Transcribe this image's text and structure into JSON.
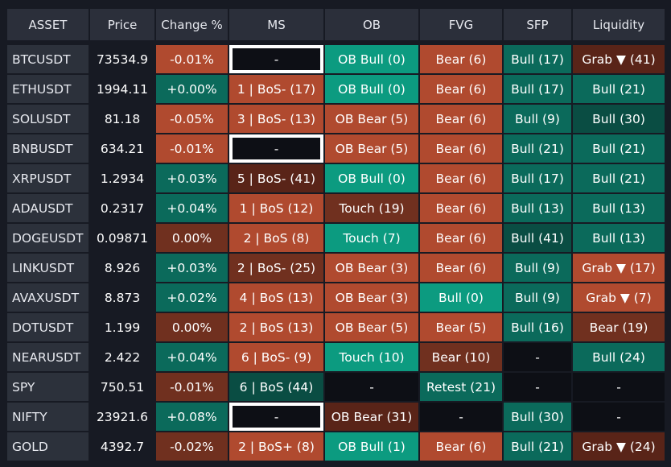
{
  "headers": [
    "ASSET",
    "Price",
    "Change %",
    "MS",
    "OB",
    "FVG",
    "SFP",
    "Liquidity"
  ],
  "colors": {
    "background": "#171a23",
    "header_bg": "#2b2f3a",
    "asset_bg": "#2c313b",
    "price_bg": "#171a23",
    "teal": "#0c9b80",
    "dark_teal": "#0b6a5b",
    "darkest_teal": "#0a4d43",
    "orange": "#b04a2f",
    "brown": "#70301f",
    "dark_brown": "#592418",
    "black": "#0d0f15"
  },
  "rows": [
    {
      "asset": "BTCUSDT",
      "price": "73534.9",
      "change": {
        "text": "-0.01%",
        "color": "orange"
      },
      "ms": {
        "text": "-",
        "color": "black",
        "highlight": true
      },
      "ob": {
        "text": "OB Bull (0)",
        "color": "teal"
      },
      "fvg": {
        "text": "Bear (6)",
        "color": "orange"
      },
      "sfp": {
        "text": "Bull (17)",
        "color": "dark_teal"
      },
      "liq": {
        "text": "Grab ▼ (41)",
        "color": "dark_brown"
      }
    },
    {
      "asset": "ETHUSDT",
      "price": "1994.11",
      "change": {
        "text": "+0.00%",
        "color": "dark_teal"
      },
      "ms": {
        "text": "1 | BoS- (17)",
        "color": "orange"
      },
      "ob": {
        "text": "OB Bull (0)",
        "color": "teal"
      },
      "fvg": {
        "text": "Bear (6)",
        "color": "orange"
      },
      "sfp": {
        "text": "Bull (17)",
        "color": "dark_teal"
      },
      "liq": {
        "text": "Bull (21)",
        "color": "dark_teal"
      }
    },
    {
      "asset": "SOLUSDT",
      "price": "81.18",
      "change": {
        "text": "-0.05%",
        "color": "orange"
      },
      "ms": {
        "text": "3 | BoS- (13)",
        "color": "orange"
      },
      "ob": {
        "text": "OB Bear (5)",
        "color": "orange"
      },
      "fvg": {
        "text": "Bear (6)",
        "color": "orange"
      },
      "sfp": {
        "text": "Bull (9)",
        "color": "dark_teal"
      },
      "liq": {
        "text": "Bull (30)",
        "color": "darkest_teal"
      }
    },
    {
      "asset": "BNBUSDT",
      "price": "634.21",
      "change": {
        "text": "-0.01%",
        "color": "orange"
      },
      "ms": {
        "text": "-",
        "color": "black",
        "highlight": true
      },
      "ob": {
        "text": "OB Bear (5)",
        "color": "orange"
      },
      "fvg": {
        "text": "Bear (6)",
        "color": "orange"
      },
      "sfp": {
        "text": "Bull (21)",
        "color": "dark_teal"
      },
      "liq": {
        "text": "Bull (21)",
        "color": "dark_teal"
      }
    },
    {
      "asset": "XRPUSDT",
      "price": "1.2934",
      "change": {
        "text": "+0.03%",
        "color": "dark_teal"
      },
      "ms": {
        "text": "5 | BoS- (41)",
        "color": "dark_brown"
      },
      "ob": {
        "text": "OB Bull (0)",
        "color": "teal"
      },
      "fvg": {
        "text": "Bear (6)",
        "color": "orange"
      },
      "sfp": {
        "text": "Bull (17)",
        "color": "dark_teal"
      },
      "liq": {
        "text": "Bull (21)",
        "color": "dark_teal"
      }
    },
    {
      "asset": "ADAUSDT",
      "price": "0.2317",
      "change": {
        "text": "+0.04%",
        "color": "dark_teal"
      },
      "ms": {
        "text": "1 | BoS (12)",
        "color": "orange"
      },
      "ob": {
        "text": "Touch (19)",
        "color": "brown"
      },
      "fvg": {
        "text": "Bear (6)",
        "color": "orange"
      },
      "sfp": {
        "text": "Bull (13)",
        "color": "dark_teal"
      },
      "liq": {
        "text": "Bull (13)",
        "color": "dark_teal"
      }
    },
    {
      "asset": "DOGEUSDT",
      "price": "0.09871",
      "change": {
        "text": "0.00%",
        "color": "brown"
      },
      "ms": {
        "text": "2 | BoS (8)",
        "color": "orange"
      },
      "ob": {
        "text": "Touch (7)",
        "color": "teal"
      },
      "fvg": {
        "text": "Bear (6)",
        "color": "orange"
      },
      "sfp": {
        "text": "Bull (41)",
        "color": "darkest_teal"
      },
      "liq": {
        "text": "Bull (13)",
        "color": "dark_teal"
      }
    },
    {
      "asset": "LINKUSDT",
      "price": "8.926",
      "change": {
        "text": "+0.03%",
        "color": "dark_teal"
      },
      "ms": {
        "text": "2 | BoS- (25)",
        "color": "brown"
      },
      "ob": {
        "text": "OB Bear (3)",
        "color": "orange"
      },
      "fvg": {
        "text": "Bear (6)",
        "color": "orange"
      },
      "sfp": {
        "text": "Bull (9)",
        "color": "dark_teal"
      },
      "liq": {
        "text": "Grab ▼ (17)",
        "color": "orange"
      }
    },
    {
      "asset": "AVAXUSDT",
      "price": "8.873",
      "change": {
        "text": "+0.02%",
        "color": "dark_teal"
      },
      "ms": {
        "text": "4 | BoS (13)",
        "color": "orange"
      },
      "ob": {
        "text": "OB Bear (3)",
        "color": "orange"
      },
      "fvg": {
        "text": "Bull (0)",
        "color": "teal"
      },
      "sfp": {
        "text": "Bull (9)",
        "color": "dark_teal"
      },
      "liq": {
        "text": "Grab ▼ (7)",
        "color": "orange"
      }
    },
    {
      "asset": "DOTUSDT",
      "price": "1.199",
      "change": {
        "text": "0.00%",
        "color": "brown"
      },
      "ms": {
        "text": "2 | BoS (13)",
        "color": "orange"
      },
      "ob": {
        "text": "OB Bear (5)",
        "color": "orange"
      },
      "fvg": {
        "text": "Bear (5)",
        "color": "orange"
      },
      "sfp": {
        "text": "Bull (16)",
        "color": "dark_teal"
      },
      "liq": {
        "text": "Bear (19)",
        "color": "brown"
      }
    },
    {
      "asset": "NEARUSDT",
      "price": "2.422",
      "change": {
        "text": "+0.04%",
        "color": "dark_teal"
      },
      "ms": {
        "text": "6 | BoS- (9)",
        "color": "orange"
      },
      "ob": {
        "text": "Touch (10)",
        "color": "teal"
      },
      "fvg": {
        "text": "Bear (10)",
        "color": "brown"
      },
      "sfp": {
        "text": "-",
        "color": "black"
      },
      "liq": {
        "text": "Bull (24)",
        "color": "dark_teal"
      }
    },
    {
      "asset": "SPY",
      "price": "750.51",
      "change": {
        "text": "-0.01%",
        "color": "brown"
      },
      "ms": {
        "text": "6 | BoS (44)",
        "color": "darkest_teal"
      },
      "ob": {
        "text": "-",
        "color": "black"
      },
      "fvg": {
        "text": "Retest (21)",
        "color": "dark_teal"
      },
      "sfp": {
        "text": "-",
        "color": "black"
      },
      "liq": {
        "text": "-",
        "color": "black"
      }
    },
    {
      "asset": "NIFTY",
      "price": "23921.6",
      "change": {
        "text": "+0.08%",
        "color": "dark_teal"
      },
      "ms": {
        "text": "-",
        "color": "black",
        "highlight": true
      },
      "ob": {
        "text": "OB Bear (31)",
        "color": "dark_brown"
      },
      "fvg": {
        "text": "-",
        "color": "black"
      },
      "sfp": {
        "text": "Bull (30)",
        "color": "dark_teal"
      },
      "liq": {
        "text": "-",
        "color": "black"
      }
    },
    {
      "asset": "GOLD",
      "price": "4392.7",
      "change": {
        "text": "-0.02%",
        "color": "brown"
      },
      "ms": {
        "text": "2 | BoS+ (8)",
        "color": "orange"
      },
      "ob": {
        "text": "OB Bull (1)",
        "color": "teal"
      },
      "fvg": {
        "text": "Bear (6)",
        "color": "orange"
      },
      "sfp": {
        "text": "Bull (21)",
        "color": "dark_teal"
      },
      "liq": {
        "text": "Grab ▼ (24)",
        "color": "dark_brown"
      }
    }
  ]
}
